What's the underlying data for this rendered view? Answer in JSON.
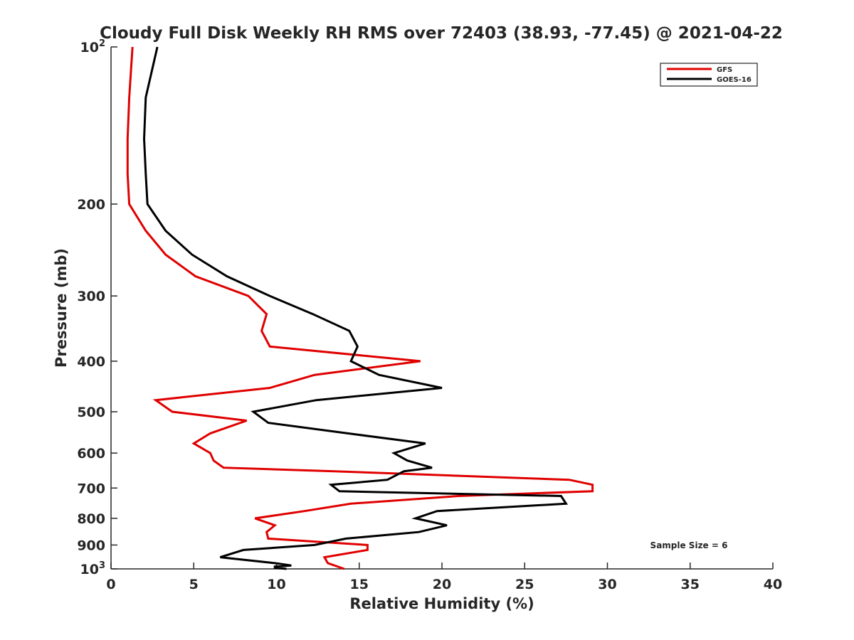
{
  "chart_data": {
    "type": "line",
    "title": "Cloudy Full Disk Weekly RH RMS over 72403 (38.93, -77.45) @ 2021-04-22",
    "xlabel": "Relative Humidity (%)",
    "ylabel": "Pressure (mb)",
    "xlim": [
      0,
      40
    ],
    "ylim": [
      100,
      1000
    ],
    "y_scale": "log",
    "y_reversed": true,
    "grid": false,
    "legend_position": "top-right",
    "x_ticks": [
      "0",
      "5",
      "10",
      "15",
      "20",
      "25",
      "30",
      "35",
      "40"
    ],
    "x_tick_values": [
      0,
      5,
      10,
      15,
      20,
      25,
      30,
      35,
      40
    ],
    "y_ticks": [
      {
        "value": 100,
        "base": "10",
        "exp": "2"
      },
      {
        "value": 200,
        "base": "200",
        "exp": ""
      },
      {
        "value": 300,
        "base": "300",
        "exp": ""
      },
      {
        "value": 400,
        "base": "400",
        "exp": ""
      },
      {
        "value": 500,
        "base": "500",
        "exp": ""
      },
      {
        "value": 600,
        "base": "600",
        "exp": ""
      },
      {
        "value": 700,
        "base": "700",
        "exp": ""
      },
      {
        "value": 800,
        "base": "800",
        "exp": ""
      },
      {
        "value": 900,
        "base": "900",
        "exp": ""
      },
      {
        "value": 1000,
        "base": "10",
        "exp": "3"
      }
    ],
    "annotation": "Sample Size = 6",
    "series": [
      {
        "name": "GFS",
        "color": "#e00000",
        "points": [
          [
            1.3,
            100
          ],
          [
            1.1,
            125
          ],
          [
            1.0,
            150
          ],
          [
            1.0,
            175
          ],
          [
            1.1,
            200
          ],
          [
            2.1,
            225
          ],
          [
            3.3,
            250
          ],
          [
            5.1,
            275
          ],
          [
            8.3,
            300
          ],
          [
            9.4,
            325
          ],
          [
            9.1,
            350
          ],
          [
            9.6,
            375
          ],
          [
            18.7,
            400
          ],
          [
            12.3,
            425
          ],
          [
            9.6,
            450
          ],
          [
            2.7,
            475
          ],
          [
            3.7,
            500
          ],
          [
            8.2,
            520
          ],
          [
            6.0,
            550
          ],
          [
            5.0,
            575
          ],
          [
            6.0,
            600
          ],
          [
            6.2,
            620
          ],
          [
            6.8,
            640
          ],
          [
            13.5,
            650
          ],
          [
            27.7,
            675
          ],
          [
            29.1,
            690
          ],
          [
            29.1,
            710
          ],
          [
            21.0,
            725
          ],
          [
            14.5,
            750
          ],
          [
            11.7,
            775
          ],
          [
            8.7,
            800
          ],
          [
            9.9,
            825
          ],
          [
            9.4,
            850
          ],
          [
            9.5,
            875
          ],
          [
            15.5,
            900
          ],
          [
            15.5,
            920
          ],
          [
            12.9,
            950
          ],
          [
            13.1,
            975
          ],
          [
            14.1,
            1000
          ]
        ]
      },
      {
        "name": "GOES-16",
        "color": "#000000",
        "points": [
          [
            2.8,
            100
          ],
          [
            2.1,
            125
          ],
          [
            2.0,
            150
          ],
          [
            2.1,
            175
          ],
          [
            2.2,
            200
          ],
          [
            3.3,
            225
          ],
          [
            4.9,
            250
          ],
          [
            7.0,
            275
          ],
          [
            9.6,
            300
          ],
          [
            12.2,
            325
          ],
          [
            14.4,
            350
          ],
          [
            14.9,
            375
          ],
          [
            14.5,
            400
          ],
          [
            16.2,
            425
          ],
          [
            20.0,
            450
          ],
          [
            12.4,
            475
          ],
          [
            8.6,
            500
          ],
          [
            9.5,
            525
          ],
          [
            14.3,
            550
          ],
          [
            19.0,
            575
          ],
          [
            17.1,
            600
          ],
          [
            17.9,
            620
          ],
          [
            19.4,
            640
          ],
          [
            17.7,
            650
          ],
          [
            16.7,
            675
          ],
          [
            13.3,
            690
          ],
          [
            13.8,
            710
          ],
          [
            27.2,
            725
          ],
          [
            27.5,
            750
          ],
          [
            19.7,
            775
          ],
          [
            18.4,
            800
          ],
          [
            20.3,
            825
          ],
          [
            18.6,
            850
          ],
          [
            14.2,
            875
          ],
          [
            12.3,
            900
          ],
          [
            8.0,
            920
          ],
          [
            6.6,
            950
          ],
          [
            9.9,
            975
          ],
          [
            10.9,
            985
          ],
          [
            9.9,
            990
          ],
          [
            9.9,
            995
          ],
          [
            10.6,
            1000
          ]
        ]
      }
    ]
  }
}
